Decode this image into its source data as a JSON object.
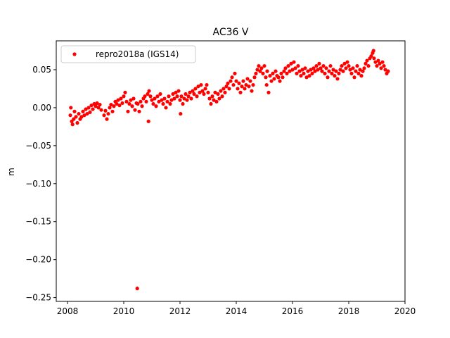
{
  "chart_data": {
    "type": "scatter",
    "title": "AC36 V",
    "xlabel": "",
    "ylabel": "m",
    "xlim": [
      2007.6,
      2020.0
    ],
    "ylim": [
      -0.255,
      0.088
    ],
    "xticks": [
      2008,
      2010,
      2012,
      2014,
      2016,
      2018,
      2020
    ],
    "xtick_labels": [
      "2008",
      "2010",
      "2012",
      "2014",
      "2016",
      "2018",
      "2020"
    ],
    "yticks": [
      0.05,
      0.0,
      -0.05,
      -0.1,
      -0.15,
      -0.2,
      -0.25
    ],
    "ytick_labels": [
      "0.05",
      "0.00",
      "−0.05",
      "−0.10",
      "−0.15",
      "−0.20",
      "−0.25"
    ],
    "grid": false,
    "legend_position": "top-left",
    "series": [
      {
        "name": "repro2018a (IGS14)",
        "color": "#ff0000",
        "marker": "circle",
        "points": [
          [
            2008.1,
            -0.01
          ],
          [
            2008.12,
            0.0
          ],
          [
            2008.15,
            -0.018
          ],
          [
            2008.18,
            -0.022
          ],
          [
            2008.22,
            -0.015
          ],
          [
            2008.25,
            -0.005
          ],
          [
            2008.3,
            -0.012
          ],
          [
            2008.35,
            -0.02
          ],
          [
            2008.4,
            -0.008
          ],
          [
            2008.45,
            -0.015
          ],
          [
            2008.5,
            -0.012
          ],
          [
            2008.55,
            -0.005
          ],
          [
            2008.6,
            -0.01
          ],
          [
            2008.65,
            -0.002
          ],
          [
            2008.7,
            -0.008
          ],
          [
            2008.75,
            0.0
          ],
          [
            2008.8,
            -0.006
          ],
          [
            2008.85,
            0.003
          ],
          [
            2008.9,
            -0.002
          ],
          [
            2008.95,
            0.005
          ],
          [
            2009.0,
            0.002
          ],
          [
            2009.05,
            0.006
          ],
          [
            2009.1,
            0.0
          ],
          [
            2009.15,
            0.004
          ],
          [
            2009.2,
            -0.003
          ],
          [
            2009.3,
            -0.01
          ],
          [
            2009.35,
            -0.004
          ],
          [
            2009.4,
            -0.015
          ],
          [
            2009.45,
            -0.008
          ],
          [
            2009.5,
            0.0
          ],
          [
            2009.55,
            0.004
          ],
          [
            2009.6,
            -0.005
          ],
          [
            2009.65,
            0.002
          ],
          [
            2009.7,
            0.008
          ],
          [
            2009.75,
            0.005
          ],
          [
            2009.8,
            0.01
          ],
          [
            2009.85,
            0.003
          ],
          [
            2009.9,
            0.012
          ],
          [
            2009.95,
            0.006
          ],
          [
            2010.0,
            0.015
          ],
          [
            2010.05,
            0.02
          ],
          [
            2010.1,
            0.008
          ],
          [
            2010.15,
            -0.005
          ],
          [
            2010.2,
            0.005
          ],
          [
            2010.25,
            0.01
          ],
          [
            2010.3,
            0.002
          ],
          [
            2010.35,
            0.012
          ],
          [
            2010.4,
            -0.003
          ],
          [
            2010.45,
            0.006
          ],
          [
            2010.48,
            -0.238
          ],
          [
            2010.5,
            0.005
          ],
          [
            2010.55,
            -0.005
          ],
          [
            2010.6,
            0.008
          ],
          [
            2010.65,
            0.002
          ],
          [
            2010.7,
            0.012
          ],
          [
            2010.75,
            0.015
          ],
          [
            2010.8,
            0.008
          ],
          [
            2010.85,
            0.018
          ],
          [
            2010.88,
            -0.018
          ],
          [
            2010.9,
            0.022
          ],
          [
            2010.95,
            0.015
          ],
          [
            2011.0,
            0.01
          ],
          [
            2011.05,
            0.005
          ],
          [
            2011.1,
            0.012
          ],
          [
            2011.15,
            0.002
          ],
          [
            2011.2,
            0.015
          ],
          [
            2011.25,
            0.008
          ],
          [
            2011.3,
            0.018
          ],
          [
            2011.35,
            0.01
          ],
          [
            2011.4,
            0.005
          ],
          [
            2011.45,
            0.012
          ],
          [
            2011.5,
            0.0
          ],
          [
            2011.55,
            0.008
          ],
          [
            2011.6,
            0.015
          ],
          [
            2011.65,
            0.005
          ],
          [
            2011.7,
            0.01
          ],
          [
            2011.75,
            0.018
          ],
          [
            2011.8,
            0.012
          ],
          [
            2011.85,
            0.02
          ],
          [
            2011.9,
            0.015
          ],
          [
            2011.95,
            0.022
          ],
          [
            2012.0,
            0.01
          ],
          [
            2012.02,
            -0.008
          ],
          [
            2012.05,
            0.015
          ],
          [
            2012.1,
            0.005
          ],
          [
            2012.15,
            0.012
          ],
          [
            2012.2,
            0.018
          ],
          [
            2012.25,
            0.01
          ],
          [
            2012.3,
            0.015
          ],
          [
            2012.35,
            0.02
          ],
          [
            2012.4,
            0.012
          ],
          [
            2012.45,
            0.022
          ],
          [
            2012.5,
            0.018
          ],
          [
            2012.55,
            0.025
          ],
          [
            2012.6,
            0.015
          ],
          [
            2012.65,
            0.028
          ],
          [
            2012.7,
            0.02
          ],
          [
            2012.75,
            0.03
          ],
          [
            2012.8,
            0.022
          ],
          [
            2012.85,
            0.018
          ],
          [
            2012.9,
            0.025
          ],
          [
            2012.95,
            0.03
          ],
          [
            2013.0,
            0.02
          ],
          [
            2013.05,
            0.012
          ],
          [
            2013.1,
            0.005
          ],
          [
            2013.15,
            0.015
          ],
          [
            2013.2,
            0.01
          ],
          [
            2013.25,
            0.02
          ],
          [
            2013.3,
            0.008
          ],
          [
            2013.35,
            0.018
          ],
          [
            2013.4,
            0.012
          ],
          [
            2013.45,
            0.022
          ],
          [
            2013.5,
            0.015
          ],
          [
            2013.55,
            0.025
          ],
          [
            2013.6,
            0.02
          ],
          [
            2013.65,
            0.028
          ],
          [
            2013.7,
            0.032
          ],
          [
            2013.75,
            0.025
          ],
          [
            2013.8,
            0.035
          ],
          [
            2013.85,
            0.04
          ],
          [
            2013.9,
            0.03
          ],
          [
            2013.95,
            0.045
          ],
          [
            2014.0,
            0.035
          ],
          [
            2014.05,
            0.025
          ],
          [
            2014.1,
            0.032
          ],
          [
            2014.15,
            0.02
          ],
          [
            2014.2,
            0.028
          ],
          [
            2014.25,
            0.035
          ],
          [
            2014.3,
            0.025
          ],
          [
            2014.35,
            0.03
          ],
          [
            2014.4,
            0.038
          ],
          [
            2014.45,
            0.028
          ],
          [
            2014.5,
            0.035
          ],
          [
            2014.55,
            0.022
          ],
          [
            2014.6,
            0.03
          ],
          [
            2014.65,
            0.04
          ],
          [
            2014.7,
            0.045
          ],
          [
            2014.75,
            0.05
          ],
          [
            2014.8,
            0.055
          ],
          [
            2014.85,
            0.048
          ],
          [
            2014.9,
            0.052
          ],
          [
            2014.95,
            0.045
          ],
          [
            2015.0,
            0.055
          ],
          [
            2015.05,
            0.04
          ],
          [
            2015.08,
            0.03
          ],
          [
            2015.1,
            0.048
          ],
          [
            2015.15,
            0.02
          ],
          [
            2015.2,
            0.042
          ],
          [
            2015.25,
            0.035
          ],
          [
            2015.3,
            0.045
          ],
          [
            2015.35,
            0.038
          ],
          [
            2015.4,
            0.048
          ],
          [
            2015.45,
            0.042
          ],
          [
            2015.5,
            0.04
          ],
          [
            2015.55,
            0.035
          ],
          [
            2015.6,
            0.045
          ],
          [
            2015.65,
            0.04
          ],
          [
            2015.7,
            0.048
          ],
          [
            2015.75,
            0.052
          ],
          [
            2015.8,
            0.045
          ],
          [
            2015.85,
            0.055
          ],
          [
            2015.9,
            0.048
          ],
          [
            2015.95,
            0.058
          ],
          [
            2016.0,
            0.05
          ],
          [
            2016.05,
            0.06
          ],
          [
            2016.1,
            0.052
          ],
          [
            2016.15,
            0.045
          ],
          [
            2016.2,
            0.055
          ],
          [
            2016.25,
            0.048
          ],
          [
            2016.3,
            0.042
          ],
          [
            2016.35,
            0.05
          ],
          [
            2016.4,
            0.045
          ],
          [
            2016.45,
            0.052
          ],
          [
            2016.5,
            0.04
          ],
          [
            2016.55,
            0.048
          ],
          [
            2016.6,
            0.042
          ],
          [
            2016.65,
            0.05
          ],
          [
            2016.7,
            0.045
          ],
          [
            2016.75,
            0.052
          ],
          [
            2016.8,
            0.048
          ],
          [
            2016.85,
            0.055
          ],
          [
            2016.9,
            0.05
          ],
          [
            2016.95,
            0.058
          ],
          [
            2017.0,
            0.052
          ],
          [
            2017.05,
            0.048
          ],
          [
            2017.1,
            0.055
          ],
          [
            2017.15,
            0.045
          ],
          [
            2017.2,
            0.052
          ],
          [
            2017.25,
            0.04
          ],
          [
            2017.3,
            0.048
          ],
          [
            2017.35,
            0.055
          ],
          [
            2017.4,
            0.045
          ],
          [
            2017.45,
            0.05
          ],
          [
            2017.5,
            0.042
          ],
          [
            2017.55,
            0.048
          ],
          [
            2017.6,
            0.038
          ],
          [
            2017.65,
            0.045
          ],
          [
            2017.7,
            0.05
          ],
          [
            2017.75,
            0.055
          ],
          [
            2017.8,
            0.048
          ],
          [
            2017.85,
            0.058
          ],
          [
            2017.9,
            0.052
          ],
          [
            2017.95,
            0.06
          ],
          [
            2018.0,
            0.055
          ],
          [
            2018.05,
            0.05
          ],
          [
            2018.1,
            0.045
          ],
          [
            2018.15,
            0.052
          ],
          [
            2018.2,
            0.04
          ],
          [
            2018.25,
            0.048
          ],
          [
            2018.3,
            0.055
          ],
          [
            2018.35,
            0.045
          ],
          [
            2018.4,
            0.05
          ],
          [
            2018.45,
            0.042
          ],
          [
            2018.5,
            0.048
          ],
          [
            2018.55,
            0.052
          ],
          [
            2018.6,
            0.058
          ],
          [
            2018.65,
            0.062
          ],
          [
            2018.7,
            0.055
          ],
          [
            2018.75,
            0.065
          ],
          [
            2018.8,
            0.068
          ],
          [
            2018.85,
            0.072
          ],
          [
            2018.88,
            0.075
          ],
          [
            2018.9,
            0.065
          ],
          [
            2018.95,
            0.06
          ],
          [
            2019.0,
            0.055
          ],
          [
            2019.05,
            0.062
          ],
          [
            2019.1,
            0.058
          ],
          [
            2019.15,
            0.052
          ],
          [
            2019.2,
            0.06
          ],
          [
            2019.25,
            0.055
          ],
          [
            2019.3,
            0.05
          ],
          [
            2019.35,
            0.045
          ],
          [
            2019.4,
            0.048
          ]
        ]
      }
    ]
  }
}
